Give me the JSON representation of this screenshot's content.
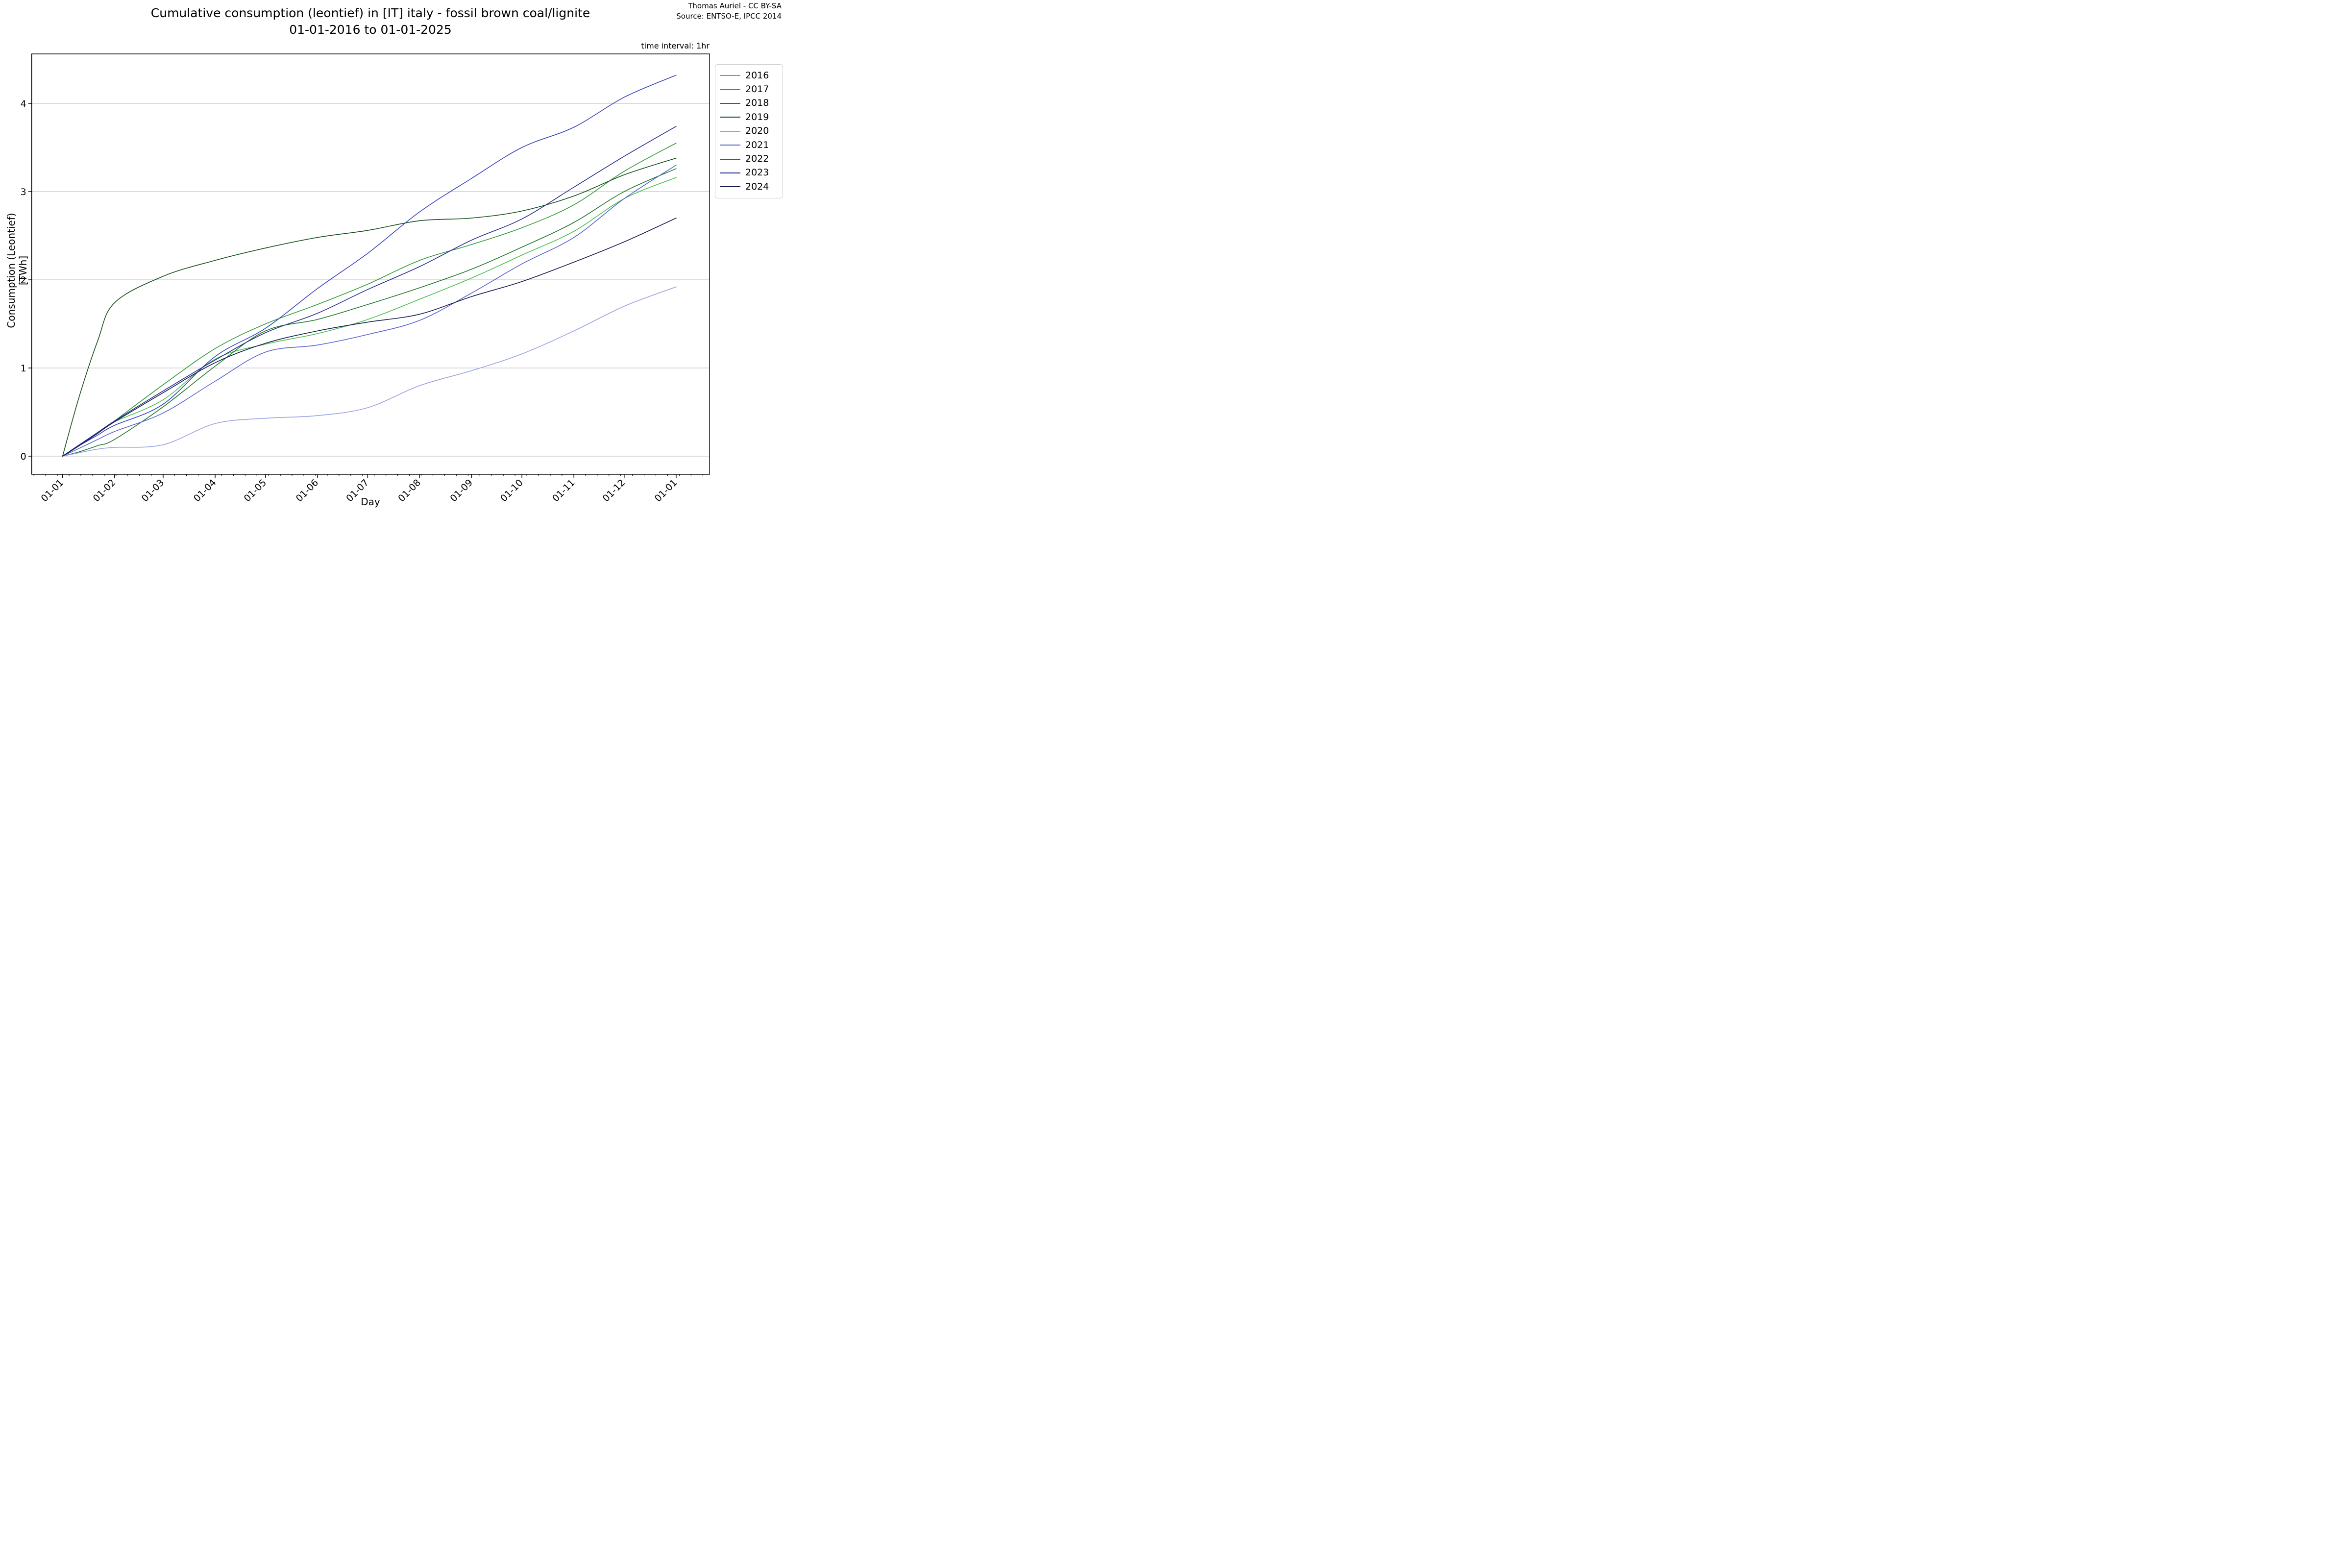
{
  "title": {
    "line1": "Cumulative consumption (leontief) in [IT] italy - fossil brown coal/lignite",
    "line2": "01-01-2016 to 01-01-2025"
  },
  "attribution": {
    "line1": "Thomas Auriel - CC BY-SA",
    "line2": "Source: ENTSO-E, IPCC 2014"
  },
  "annotation": "time interval: 1hr",
  "colors": {
    "background": "#ffffff",
    "grid": "#b8b8b8",
    "spine": "#000000",
    "legend_border": "#cccccc"
  },
  "chart_data": {
    "type": "line",
    "title": "Cumulative consumption (leontief) in [IT] italy - fossil brown coal/lignite 01-01-2016 to 01-01-2025",
    "xlabel": "Day",
    "ylabel": "Consumption (Leontief) [TWh]",
    "yticks": [
      0,
      1,
      2,
      3,
      4
    ],
    "ylim": [
      -0.206,
      4.556
    ],
    "grid": "horizontal gridlines at integer yticks",
    "legend_position": "outside upper right",
    "x_tick_labels": [
      "01-01",
      "01-02",
      "01-03",
      "01-04",
      "01-05",
      "01-06",
      "01-07",
      "01-08",
      "01-09",
      "01-10",
      "01-11",
      "01-12",
      "01-01"
    ],
    "x_tick_days": [
      0,
      31,
      60,
      91,
      121,
      152,
      182,
      213,
      244,
      274,
      305,
      335,
      366
    ],
    "x_total_days": 366,
    "xlim_days": [
      -18.4,
      385.9
    ],
    "minor_tick_step_days": 7,
    "minor_tick_start_day": -17.1,
    "sample_days": [
      0,
      10,
      21,
      31,
      60,
      91,
      121,
      152,
      182,
      213,
      244,
      274,
      305,
      335,
      366
    ],
    "units": "TWh",
    "series": [
      {
        "name": "2016",
        "color": "#4bc04e",
        "values": [
          0,
          0.12,
          0.26,
          0.39,
          0.64,
          1.1,
          1.27,
          1.39,
          1.55,
          1.78,
          2.02,
          2.28,
          2.55,
          2.92,
          3.16
        ]
      },
      {
        "name": "2017",
        "color": "#339c3c",
        "values": [
          0,
          0.12,
          0.26,
          0.4,
          0.81,
          1.22,
          1.5,
          1.72,
          1.95,
          2.22,
          2.4,
          2.59,
          2.85,
          3.23,
          3.55
        ]
      },
      {
        "name": "2018",
        "color": "#1f7a28",
        "values": [
          0,
          0.05,
          0.12,
          0.19,
          0.56,
          1.02,
          1.42,
          1.55,
          1.72,
          1.91,
          2.12,
          2.37,
          2.65,
          3.0,
          3.26
        ]
      },
      {
        "name": "2019",
        "color": "#14501b",
        "values": [
          0,
          0.68,
          1.31,
          1.74,
          2.04,
          2.22,
          2.36,
          2.48,
          2.56,
          2.67,
          2.7,
          2.78,
          2.95,
          3.19,
          3.38
        ]
      },
      {
        "name": "2020",
        "color": "#98a2e2",
        "values": [
          0,
          0.04,
          0.08,
          0.1,
          0.13,
          0.37,
          0.43,
          0.46,
          0.55,
          0.8,
          0.97,
          1.16,
          1.42,
          1.7,
          1.92
        ]
      },
      {
        "name": "2021",
        "color": "#5a64d0",
        "values": [
          0,
          0.09,
          0.19,
          0.28,
          0.49,
          0.85,
          1.18,
          1.26,
          1.38,
          1.54,
          1.85,
          2.18,
          2.48,
          2.92,
          3.3
        ]
      },
      {
        "name": "2022",
        "color": "#3a44bc",
        "values": [
          0,
          0.12,
          0.24,
          0.35,
          0.59,
          1.13,
          1.45,
          1.9,
          2.3,
          2.77,
          3.15,
          3.5,
          3.73,
          4.07,
          4.32
        ]
      },
      {
        "name": "2023",
        "color": "#28308f",
        "values": [
          0,
          0.13,
          0.27,
          0.4,
          0.74,
          1.09,
          1.4,
          1.62,
          1.89,
          2.15,
          2.45,
          2.69,
          3.05,
          3.4,
          3.74
        ]
      },
      {
        "name": "2024",
        "color": "#161c4f",
        "values": [
          0,
          0.12,
          0.26,
          0.39,
          0.72,
          1.06,
          1.28,
          1.42,
          1.52,
          1.61,
          1.81,
          1.98,
          2.2,
          2.43,
          2.7
        ]
      }
    ]
  }
}
